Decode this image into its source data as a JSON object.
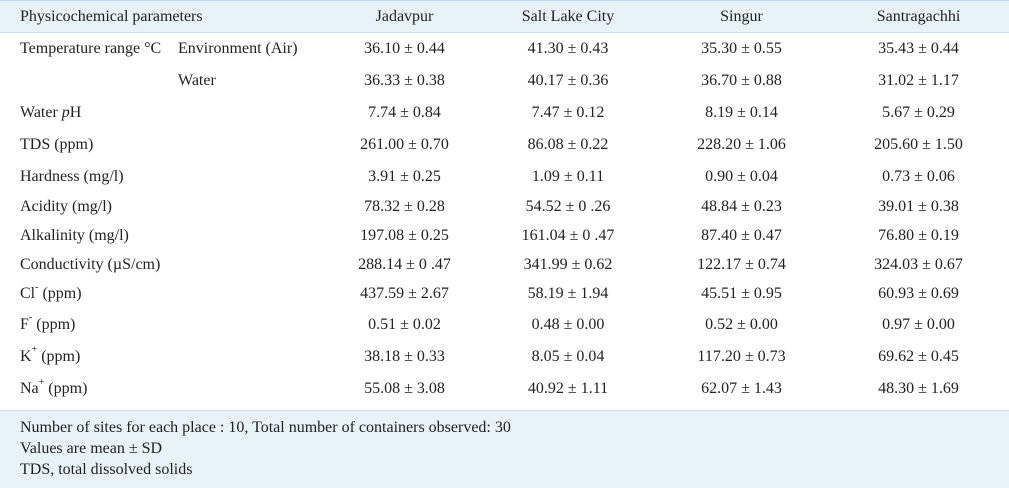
{
  "table": {
    "headers": {
      "param": "Physicochemical parameters",
      "sites": [
        "Jadavpur",
        "Salt Lake City",
        "Singur",
        "Santragachhi"
      ]
    },
    "rows": [
      {
        "param": "Temperature range °C",
        "sub": "Environment (Air)",
        "values": [
          "36.10 ± 0.44",
          "41.30 ± 0.43",
          "35.30 ± 0.55",
          "35.43 ± 0.44"
        ]
      },
      {
        "param": "",
        "sub": "Water",
        "values": [
          "36.33 ± 0.38",
          "40.17 ± 0.36",
          "36.70 ± 0.88",
          "31.02 ± 1.17"
        ]
      },
      {
        "param_pre": "Water ",
        "param_italic": "p",
        "param_post": "H",
        "values": [
          "7.74 ± 0.84",
          "7.47 ± 0.12",
          "8.19 ± 0.14",
          "5.67 ± 0.29"
        ]
      },
      {
        "param": "TDS (ppm)",
        "values": [
          "261.00 ± 0.70",
          "86.08 ± 0.22",
          "228.20 ± 1.06",
          "205.60 ± 1.50"
        ]
      },
      {
        "param": "Hardness (mg/l)",
        "values": [
          "3.91 ± 0.25",
          "1.09 ± 0.11",
          "0.90 ± 0.04",
          "0.73 ± 0.06"
        ]
      },
      {
        "param": "Acidity (mg/l)",
        "values": [
          "78.32 ± 0.28",
          "54.52 ± 0 .26",
          "48.84 ± 0.23",
          "39.01 ± 0.38"
        ]
      },
      {
        "param": "Alkalinity (mg/l)",
        "values": [
          "197.08 ± 0.25",
          "161.04 ± 0 .47",
          "87.40 ± 0.47",
          "76.80 ± 0.19"
        ]
      },
      {
        "param": "Conductivity (µS/cm)",
        "values": [
          "288.14 ± 0 .47",
          "341.99 ± 0.62",
          "122.17 ± 0.74",
          "324.03 ± 0.67"
        ]
      },
      {
        "param_base": "Cl",
        "param_sup": "-",
        "param_post": " (ppm)",
        "values": [
          "437.59 ± 2.67",
          "58.19 ± 1.94",
          "45.51 ± 0.95",
          "60.93 ± 0.69"
        ]
      },
      {
        "param_base": "F",
        "param_sup": "-",
        "param_post": " (ppm)",
        "values": [
          "0.51 ± 0.02",
          "0.48 ± 0.00",
          "0.52 ± 0.00",
          "0.97 ± 0.00"
        ]
      },
      {
        "param_base": "K",
        "param_sup": "+",
        "param_post": " (ppm)",
        "values": [
          "38.18 ± 0.33",
          "8.05 ± 0.04",
          "117.20 ± 0.73",
          "69.62 ± 0.45"
        ]
      },
      {
        "param_base": "Na",
        "param_sup": "+",
        "param_post": " (ppm)",
        "values": [
          "55.08 ± 3.08",
          "40.92 ± 1.11",
          "62.07 ± 1.43",
          "48.30 ± 1.69"
        ]
      }
    ]
  },
  "footnotes": [
    "Number of sites for each place : 10, Total number of containers observed: 30",
    "Values are mean ± SD",
    "TDS, total dissolved solids"
  ],
  "colors": {
    "header_bg": "#e8f2f9",
    "border": "#c7dbe9",
    "text": "#222222"
  }
}
